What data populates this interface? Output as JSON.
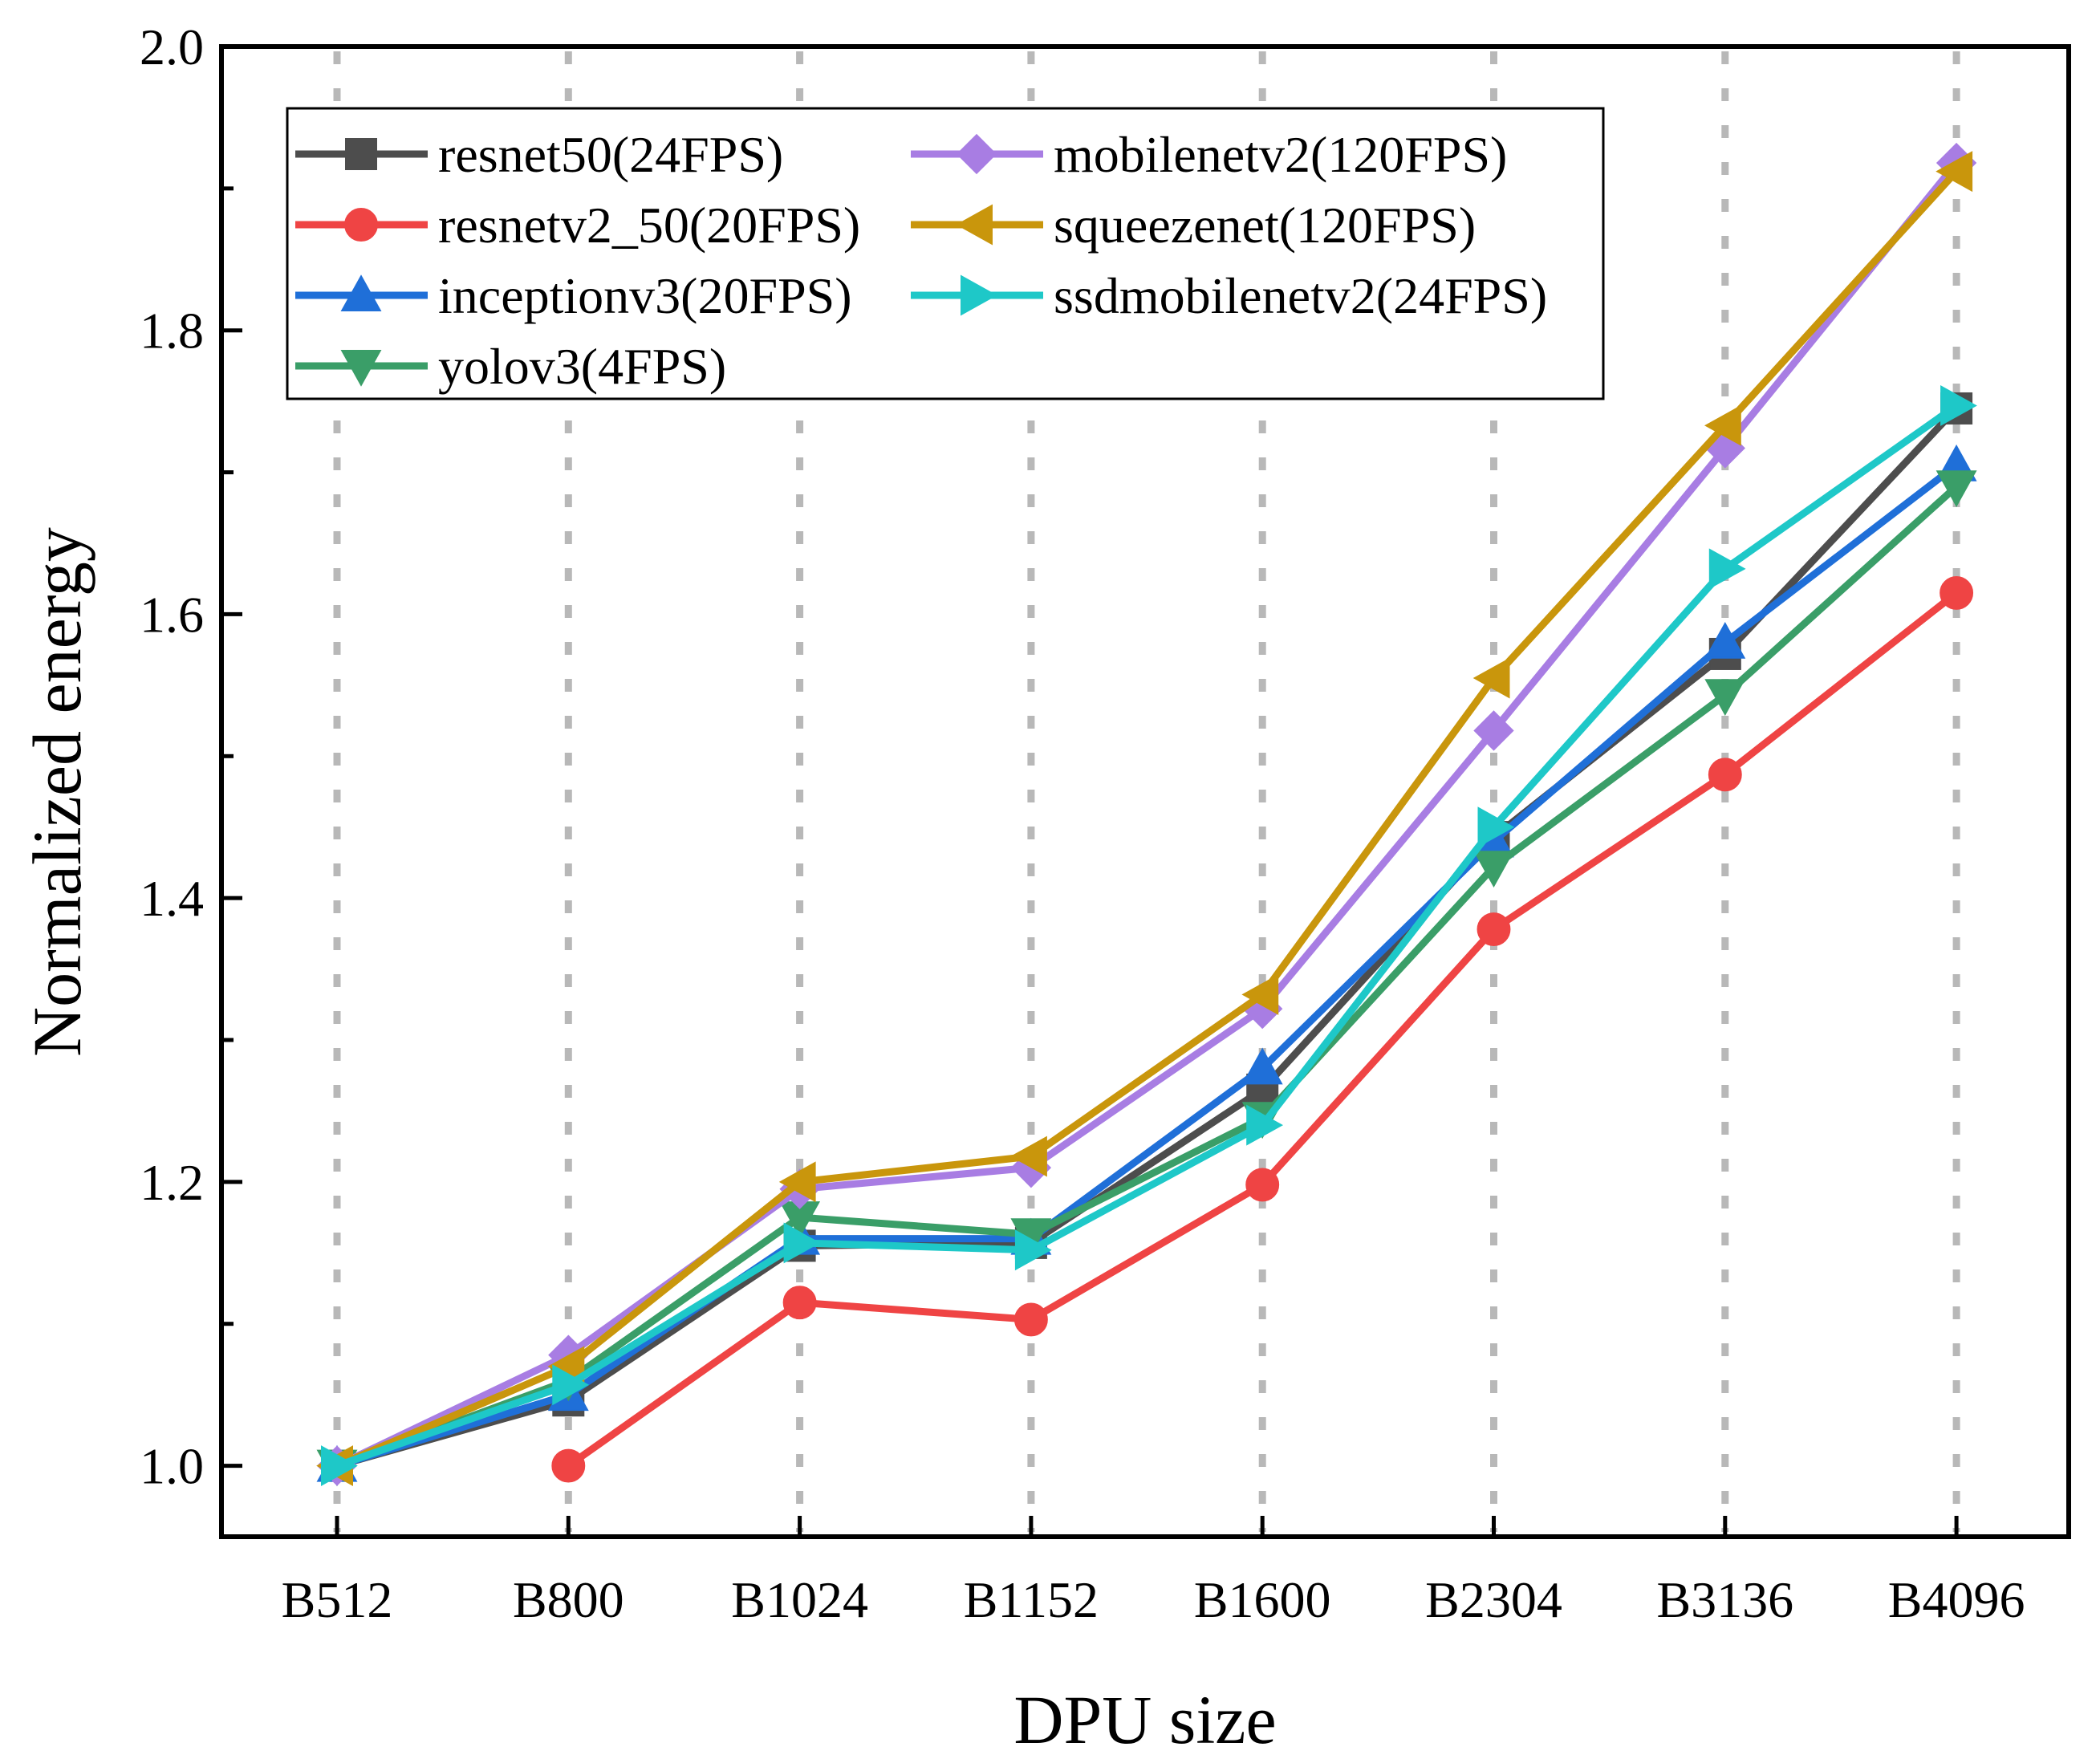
{
  "chart_data": {
    "type": "line",
    "title": "",
    "xlabel": "DPU size",
    "ylabel": "Normalized energy",
    "categories": [
      "B512",
      "B800",
      "B1024",
      "B1152",
      "B1600",
      "B2304",
      "B3136",
      "B4096"
    ],
    "ylim": [
      0.95,
      2.0
    ],
    "yticks": [
      1.0,
      1.2,
      1.4,
      1.6,
      1.8,
      2.0
    ],
    "ytick_labels": [
      "1.0",
      "1.2",
      "1.4",
      "1.6",
      "1.8",
      "2.0"
    ],
    "grid": "vertical dotted",
    "legend_position": "top-left",
    "series": [
      {
        "name": "resnet50(24FPS)",
        "color": "#4d4d4d",
        "marker": "square",
        "values": [
          1.0,
          1.046,
          1.155,
          1.157,
          1.265,
          1.443,
          1.572,
          1.745
        ]
      },
      {
        "name": "resnetv2_50(20FPS)",
        "color": "#ef4444",
        "marker": "circle",
        "values": [
          null,
          1.0,
          1.115,
          1.103,
          1.198,
          1.378,
          1.487,
          1.615
        ]
      },
      {
        "name": "inceptionv3(20FPS)",
        "color": "#1f6fd8",
        "marker": "triangle-up",
        "values": [
          1.0,
          1.05,
          1.16,
          1.16,
          1.28,
          1.44,
          1.58,
          1.705
        ]
      },
      {
        "name": "yolov3(4FPS)",
        "color": "#3a9e68",
        "marker": "triangle-down",
        "values": [
          1.0,
          1.06,
          1.175,
          1.163,
          1.245,
          1.422,
          1.543,
          1.69
        ]
      },
      {
        "name": "mobilenetv2(120FPS)",
        "color": "#a87de3",
        "marker": "diamond",
        "values": [
          1.0,
          1.078,
          1.195,
          1.21,
          1.322,
          1.518,
          1.717,
          1.918
        ]
      },
      {
        "name": "squeezenet(120FPS)",
        "color": "#c9960c",
        "marker": "triangle-left",
        "values": [
          1.0,
          1.07,
          1.2,
          1.218,
          1.332,
          1.555,
          1.733,
          1.912
        ]
      },
      {
        "name": "ssdmobilenetv2(24FPS)",
        "color": "#1ec8c8",
        "marker": "triangle-right",
        "values": [
          1.0,
          1.057,
          1.157,
          1.152,
          1.24,
          1.45,
          1.632,
          1.747
        ]
      }
    ]
  }
}
